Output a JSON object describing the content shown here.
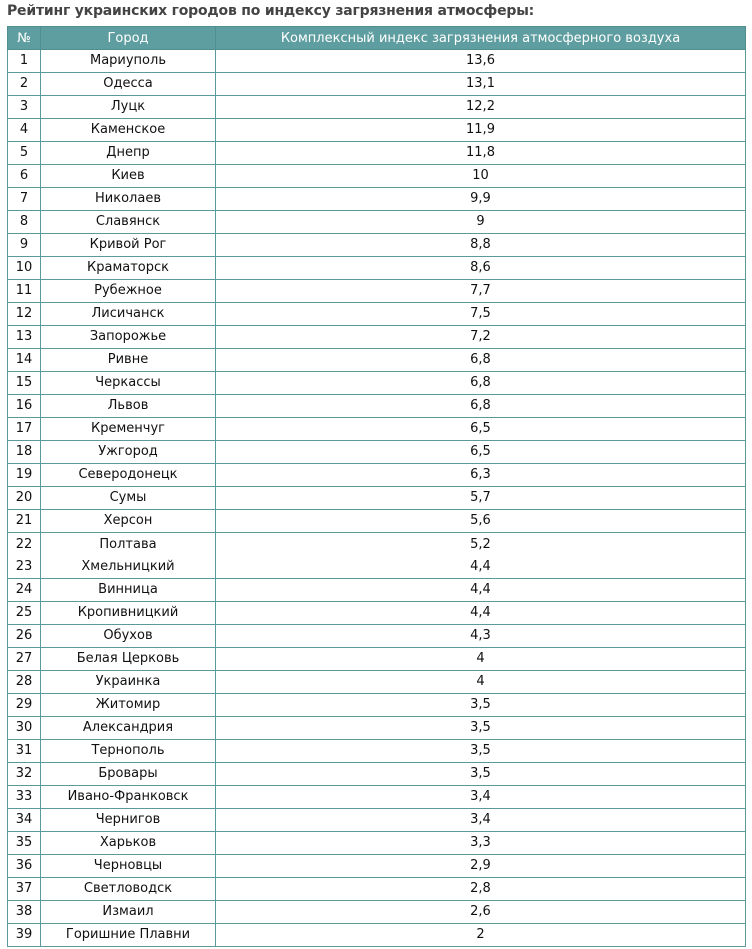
{
  "title": "Рейтинг украинских городов по индексу загрязнения атмосферы:",
  "headers": [
    "№",
    "Город",
    "Комплексный индекс загрязнения атмосферного воздуха"
  ],
  "colors": {
    "header_bg": "#5f9ea0",
    "border": "#5a9a9a"
  },
  "rows": [
    {
      "n": "1",
      "city": "Мариуполь",
      "index": "13,6"
    },
    {
      "n": "2",
      "city": "Одесса",
      "index": "13,1"
    },
    {
      "n": "3",
      "city": "Луцк",
      "index": "12,2"
    },
    {
      "n": "4",
      "city": "Каменское",
      "index": "11,9"
    },
    {
      "n": "5",
      "city": "Днепр",
      "index": "11,8"
    },
    {
      "n": "6",
      "city": "Киев",
      "index": "10"
    },
    {
      "n": "7",
      "city": "Николаев",
      "index": "9,9"
    },
    {
      "n": "8",
      "city": "Славянск",
      "index": "9"
    },
    {
      "n": "9",
      "city": "Кривой Рог",
      "index": "8,8"
    },
    {
      "n": "10",
      "city": "Краматорск",
      "index": "8,6"
    },
    {
      "n": "11",
      "city": "Рубежное",
      "index": "7,7"
    },
    {
      "n": "12",
      "city": "Лисичанск",
      "index": "7,5"
    },
    {
      "n": "13",
      "city": "Запорожье",
      "index": "7,2"
    },
    {
      "n": "14",
      "city": "Ривне",
      "index": "6,8"
    },
    {
      "n": "15",
      "city": "Черкассы",
      "index": "6,8"
    },
    {
      "n": "16",
      "city": "Львов",
      "index": "6,8"
    },
    {
      "n": "17",
      "city": "Кременчуг",
      "index": "6,5"
    },
    {
      "n": "18",
      "city": "Ужгород",
      "index": "6,5"
    },
    {
      "n": "19",
      "city": "Северодонецк",
      "index": "6,3"
    },
    {
      "n": "20",
      "city": "Сумы",
      "index": "5,7"
    },
    {
      "n": "21",
      "city": "Херсон",
      "index": "5,6"
    },
    {
      "n": "22",
      "city": "Полтава",
      "index": "5,2",
      "n2": "23",
      "city2": "Хмельницкий",
      "index2": "4,4"
    },
    {
      "n": "24",
      "city": "Винница",
      "index": "4,4"
    },
    {
      "n": "25",
      "city": "Кропивницкий",
      "index": "4,4"
    },
    {
      "n": "26",
      "city": "Обухов",
      "index": "4,3"
    },
    {
      "n": "27",
      "city": "Белая Церковь",
      "index": "4"
    },
    {
      "n": "28",
      "city": "Украинка",
      "index": "4"
    },
    {
      "n": "29",
      "city": "Житомир",
      "index": "3,5"
    },
    {
      "n": "30",
      "city": "Александрия",
      "index": "3,5"
    },
    {
      "n": "31",
      "city": "Тернополь",
      "index": "3,5"
    },
    {
      "n": "32",
      "city": "Бровары",
      "index": "3,5"
    },
    {
      "n": "33",
      "city": "Ивано-Франковск",
      "index": "3,4"
    },
    {
      "n": "34",
      "city": "Чернигов",
      "index": "3,4"
    },
    {
      "n": "35",
      "city": "Харьков",
      "index": "3,3"
    },
    {
      "n": "36",
      "city": "Черновцы",
      "index": "2,9"
    },
    {
      "n": "37",
      "city": "Светловодск",
      "index": "2,8"
    },
    {
      "n": "38",
      "city": "Измаил",
      "index": "2,6"
    },
    {
      "n": "39",
      "city": "Горишние Плавни",
      "index": "2"
    }
  ]
}
